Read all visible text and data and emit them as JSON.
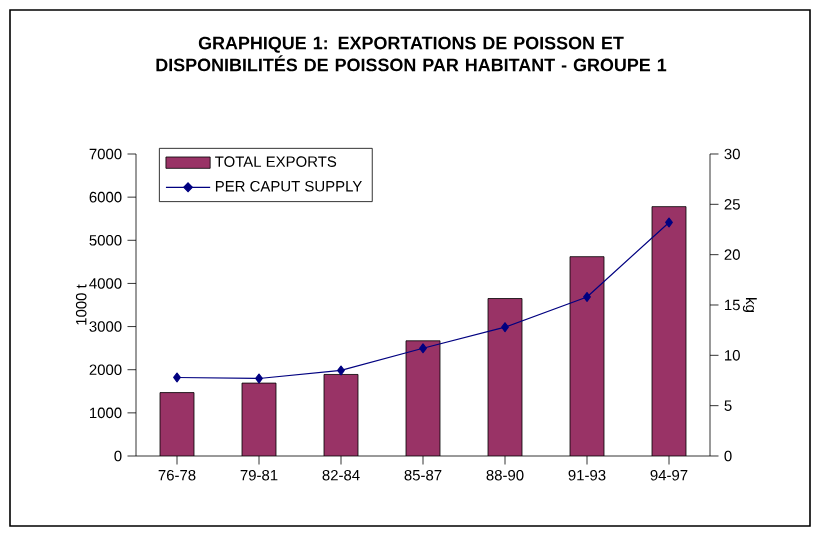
{
  "chart_data": {
    "type": "bar",
    "title": "GRAPHIQUE 1: EXPORTATIONS DE POISSON ET DISPONIBILITÉS DE POISSON PAR HABITANT - GROUPE 1",
    "categories": [
      "76-78",
      "79-81",
      "82-84",
      "85-87",
      "88-90",
      "91-93",
      "94-97"
    ],
    "series": [
      {
        "name": "TOTAL EXPORTS",
        "color": "#993366",
        "values": [
          1470,
          1690,
          1890,
          2670,
          3650,
          4620,
          5780
        ]
      },
      {
        "name": "PER CAPUT SUPPLY",
        "type": "line",
        "axis": "y2",
        "color": "#000080",
        "marker": "diamond",
        "values": [
          7.8,
          7.7,
          8.5,
          10.7,
          12.8,
          15.8,
          23.2
        ]
      }
    ],
    "ylabel": "1000 t",
    "y2label": "kg",
    "ylim": [
      0,
      7000
    ],
    "yticks": [
      0,
      1000,
      2000,
      3000,
      4000,
      5000,
      6000,
      7000
    ],
    "y2lim": [
      0,
      30
    ],
    "y2ticks": [
      0,
      5,
      10,
      15,
      20,
      25,
      30
    ],
    "legend": "top left"
  }
}
